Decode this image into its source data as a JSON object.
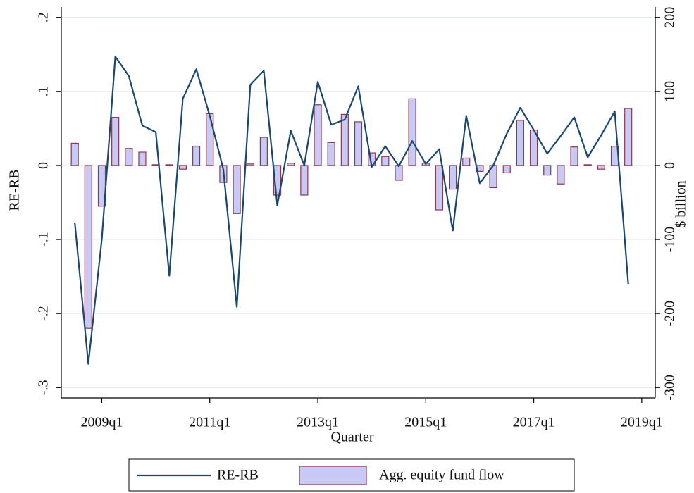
{
  "chart_data": {
    "type": "combo",
    "y_label": "RE-RB",
    "y2_label": "$ billion",
    "x_label": "Quarter",
    "x": [
      2008.5,
      2008.75,
      2009,
      2009.25,
      2009.5,
      2009.75,
      2010,
      2010.25,
      2010.5,
      2010.75,
      2011,
      2011.25,
      2011.5,
      2011.75,
      2012,
      2012.25,
      2012.5,
      2012.75,
      2013,
      2013.25,
      2013.5,
      2013.75,
      2014,
      2014.25,
      2014.5,
      2014.75,
      2015,
      2015.25,
      2015.5,
      2015.75,
      2016,
      2016.25,
      2016.5,
      2016.75,
      2017,
      2017.25,
      2017.5,
      2017.75,
      2018,
      2018.25,
      2018.5,
      2018.75
    ],
    "xlim": [
      2008.25,
      2019.25
    ],
    "xticks": [
      {
        "value": 2009,
        "label": "2009q1"
      },
      {
        "value": 2011,
        "label": "2011q1"
      },
      {
        "value": 2013,
        "label": "2013q1"
      },
      {
        "value": 2015,
        "label": "2015q1"
      },
      {
        "value": 2017,
        "label": "2017q1"
      },
      {
        "value": 2019,
        "label": "2019q1"
      }
    ],
    "ylim": [
      -0.314,
      0.214
    ],
    "yticks": [
      {
        "value": 0.2,
        "label": ".2"
      },
      {
        "value": 0.1,
        "label": ".1"
      },
      0,
      {
        "value": -0.1,
        "label": "-.1"
      },
      {
        "value": -0.2,
        "label": "-.2"
      },
      {
        "value": -0.3,
        "label": "-.3"
      }
    ],
    "y2lim": [
      -314,
      214
    ],
    "y2ticks": [
      200,
      100,
      0,
      -100,
      -200,
      -300
    ],
    "grid": true,
    "legend": "bottom",
    "series": [
      {
        "name": "Agg. equity fund flow",
        "type": "bar",
        "axis": "y2",
        "color": "#c9c9f5",
        "edge_color": "#8c3a4c",
        "values": [
          30,
          -220,
          -55,
          65,
          23,
          18,
          1,
          1,
          -5,
          26,
          70,
          -23,
          -65,
          2,
          38,
          -40,
          3,
          -40,
          82,
          31,
          69,
          59,
          17,
          12,
          -20,
          90,
          3,
          -60,
          -32,
          10,
          -8,
          -30,
          -10,
          61,
          48,
          -13,
          -25,
          25,
          1,
          -5,
          26,
          77
        ]
      },
      {
        "name": "RE-RB",
        "type": "line",
        "color": "#1a476f",
        "values": [
          -0.077,
          -0.268,
          -0.1,
          0.147,
          0.121,
          0.054,
          0.045,
          -0.149,
          0.09,
          0.13,
          0.067,
          -0.005,
          -0.191,
          0.109,
          0.128,
          -0.054,
          0.047,
          0.0,
          0.113,
          0.055,
          0.062,
          0.107,
          -0.002,
          0.026,
          -0.001,
          0.033,
          0.002,
          0.022,
          -0.088,
          0.067,
          -0.024,
          0.0,
          0.043,
          0.078,
          0.048,
          0.016,
          0.04,
          0.065,
          0.011,
          0.041,
          0.073,
          -0.16
        ]
      }
    ]
  }
}
